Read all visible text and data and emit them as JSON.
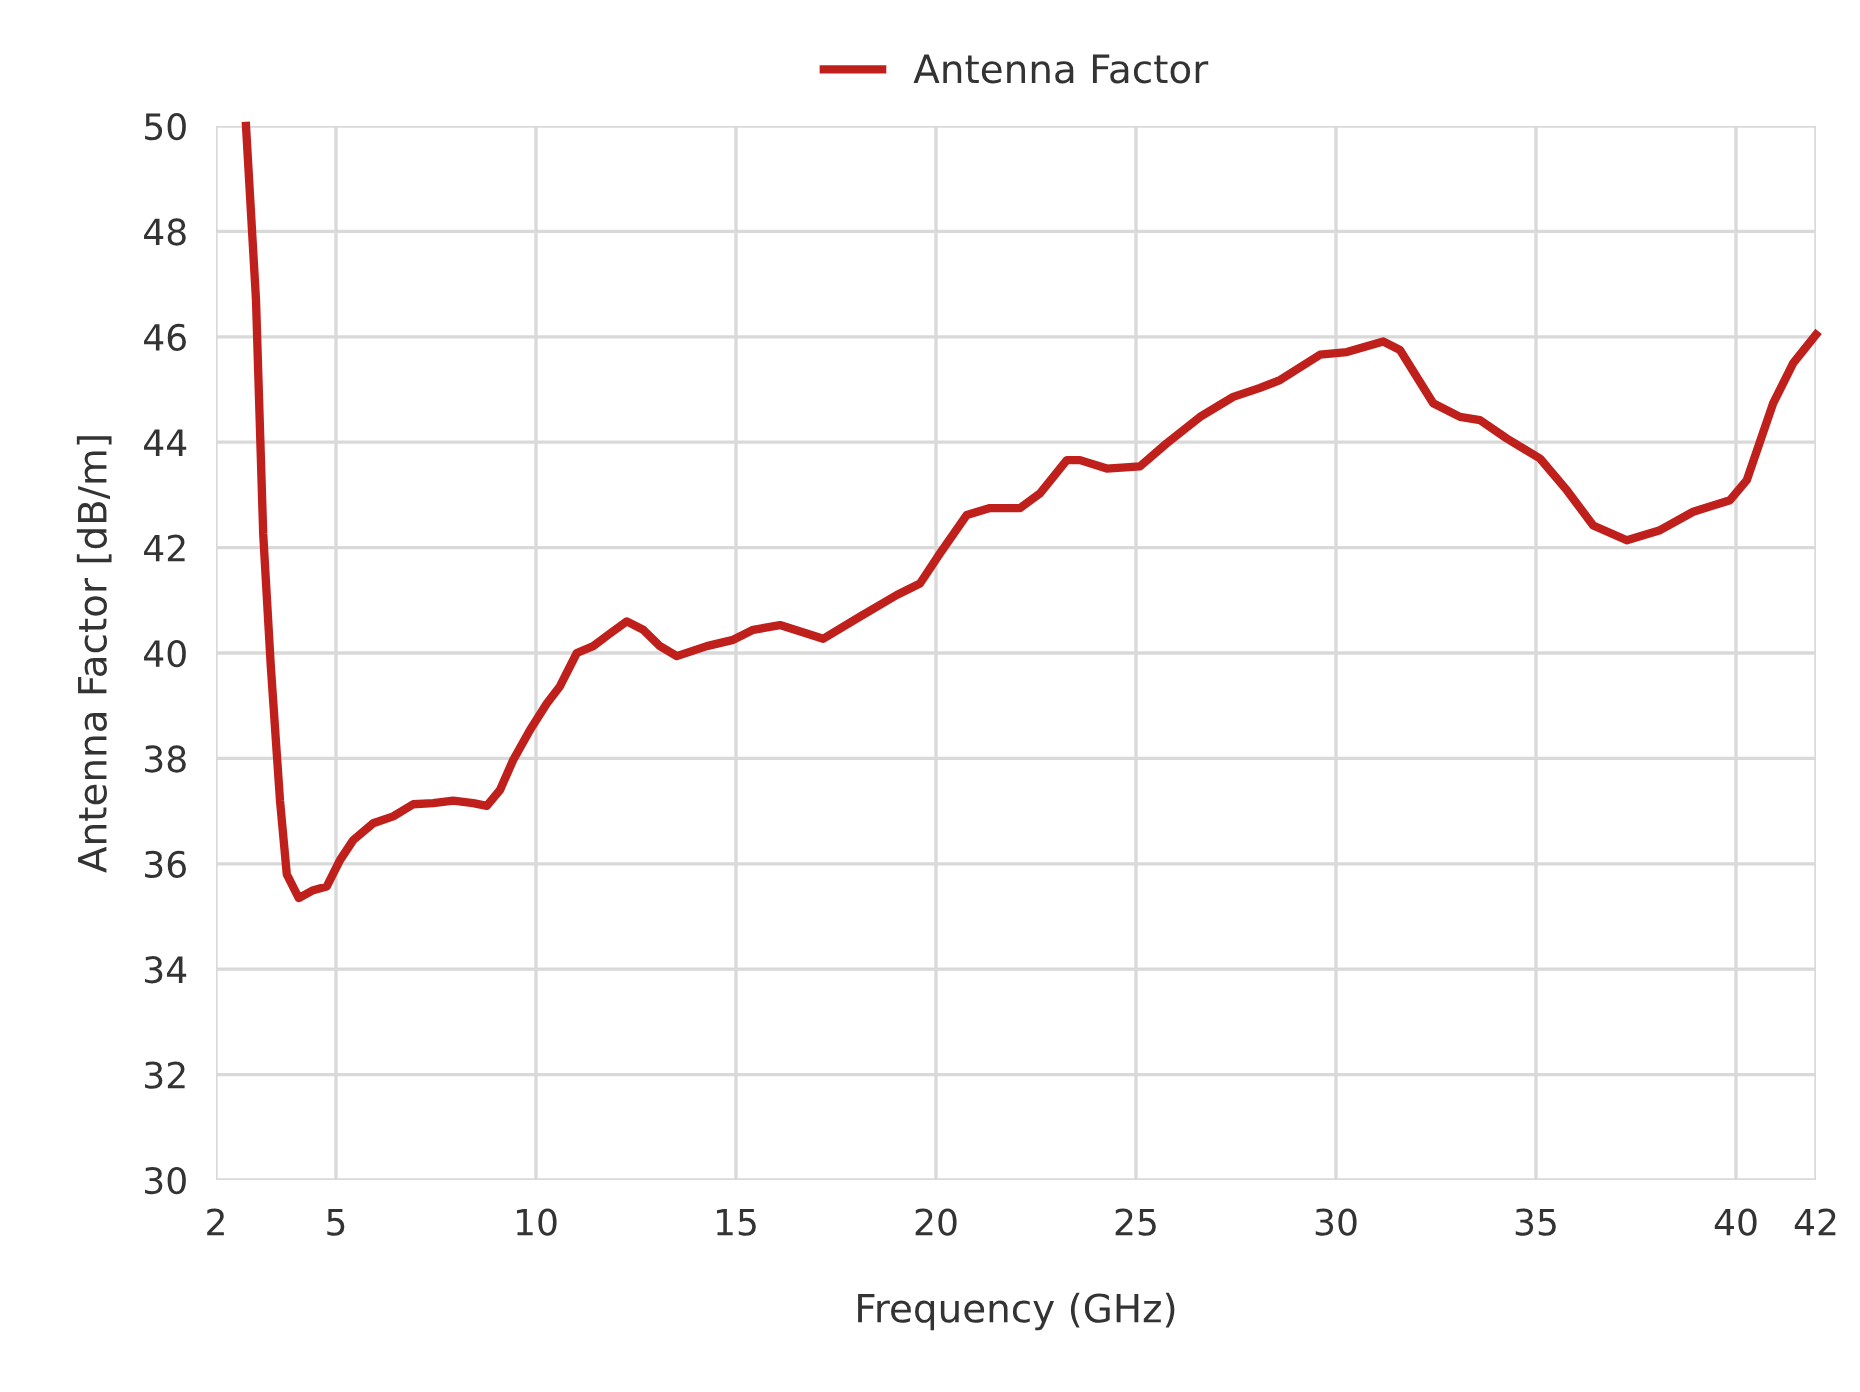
{
  "chart_data": {
    "type": "line",
    "xlabel": "Frequency (GHz)",
    "ylabel": "Antenna Factor [dB/m]",
    "xlim": [
      2,
      42
    ],
    "ylim": [
      30,
      50
    ],
    "xticks": [
      2,
      5,
      10,
      15,
      20,
      25,
      30,
      35,
      40,
      42
    ],
    "yticks": [
      30,
      32,
      34,
      36,
      38,
      40,
      42,
      44,
      46,
      48,
      50
    ],
    "grid": true,
    "legend": "top",
    "marker": "none",
    "line_style": "solid",
    "series": [
      {
        "name": "Antenna Factor",
        "color": "#c0201c",
        "x": [
          2.75,
          3.0,
          3.18,
          3.37,
          3.6,
          3.77,
          4.07,
          4.43,
          4.77,
          5.1,
          5.43,
          5.93,
          6.43,
          6.93,
          7.43,
          7.93,
          8.43,
          8.77,
          9.1,
          9.43,
          9.85,
          10.27,
          10.6,
          11.02,
          11.43,
          11.85,
          12.27,
          12.68,
          13.1,
          13.52,
          14.27,
          14.93,
          15.43,
          16.1,
          17.18,
          18.1,
          19.02,
          19.6,
          20.1,
          20.77,
          21.35,
          22.1,
          22.6,
          23.27,
          23.6,
          24.27,
          25.1,
          25.77,
          26.6,
          27.43,
          28.1,
          28.6,
          29.6,
          30.27,
          31.18,
          31.6,
          32.43,
          33.1,
          33.6,
          34.27,
          35.1,
          35.77,
          36.43,
          37.27,
          38.1,
          38.93,
          39.85,
          40.27,
          40.93,
          41.43,
          42.0
        ],
        "values": [
          50.0,
          46.7,
          42.26,
          39.75,
          37.2,
          35.8,
          35.35,
          35.5,
          35.57,
          36.07,
          36.45,
          36.77,
          36.9,
          37.13,
          37.15,
          37.2,
          37.15,
          37.1,
          37.4,
          37.97,
          38.54,
          39.04,
          39.37,
          40.0,
          40.13,
          40.37,
          40.6,
          40.44,
          40.13,
          39.94,
          40.13,
          40.25,
          40.44,
          40.53,
          40.27,
          40.69,
          41.1,
          41.32,
          41.89,
          42.62,
          42.75,
          42.75,
          43.03,
          43.66,
          43.66,
          43.5,
          43.54,
          43.98,
          44.48,
          44.86,
          45.03,
          45.18,
          45.66,
          45.71,
          45.91,
          45.75,
          44.74,
          44.48,
          44.42,
          44.07,
          43.69,
          43.09,
          42.42,
          42.14,
          42.33,
          42.68,
          42.9,
          43.28,
          44.74,
          45.5,
          46.04
        ]
      }
    ]
  }
}
